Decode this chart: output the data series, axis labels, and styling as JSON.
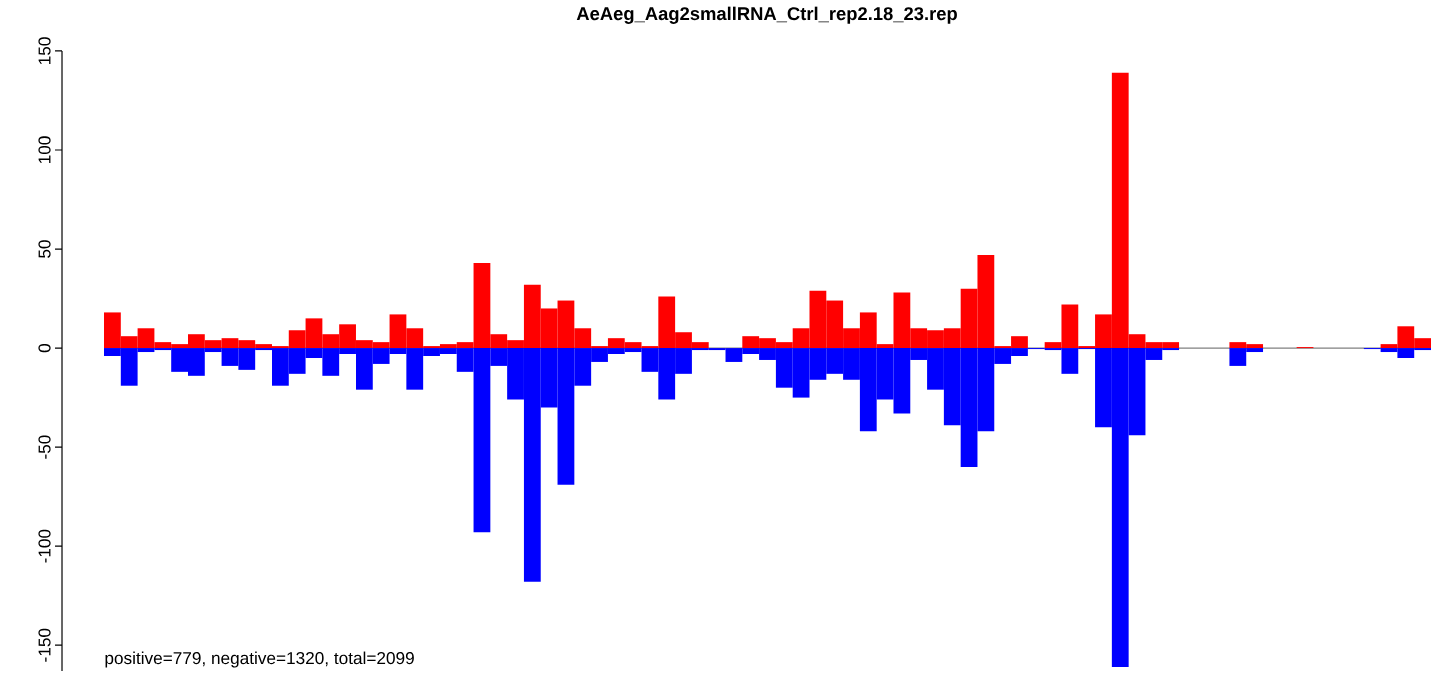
{
  "chart_data": {
    "type": "bar",
    "title": "AeAeg_Aag2smallRNA_Ctrl_rep2.18_23.rep",
    "annotations": [
      "positive=779, negative=1320, total=2099"
    ],
    "categories": [
      null,
      null,
      null,
      null,
      null,
      null,
      null,
      null,
      null,
      null,
      null,
      null,
      null,
      null,
      null,
      null,
      null,
      null,
      null,
      null,
      null,
      null,
      null,
      null,
      null,
      null,
      null,
      null,
      null,
      null,
      null,
      null,
      null,
      null,
      null,
      null,
      null,
      null,
      null,
      null,
      null,
      null,
      null,
      null,
      null,
      null,
      null,
      null,
      null,
      null,
      null,
      null,
      null,
      null,
      null,
      null,
      null,
      null,
      null,
      null,
      null,
      null,
      null,
      null,
      null,
      null,
      null,
      null,
      null,
      null,
      null,
      null,
      null,
      null,
      null,
      null,
      null,
      null,
      null
    ],
    "series": [
      {
        "color": "#ff0000",
        "values": [
          18,
          6,
          10,
          3,
          2,
          7,
          4,
          5,
          4,
          2,
          1,
          9,
          15,
          7,
          12,
          4,
          3,
          17,
          10,
          1,
          2,
          3,
          43,
          7,
          4,
          32,
          20,
          24,
          10,
          1,
          5,
          3,
          1,
          26,
          8,
          3,
          null,
          null,
          6,
          5,
          3,
          10,
          29,
          24,
          10,
          18,
          2,
          28,
          10,
          9,
          10,
          30,
          47,
          1,
          6,
          null,
          3,
          22,
          1,
          17,
          139,
          7,
          3,
          3,
          0,
          0,
          0,
          3,
          2,
          0,
          0,
          0.5,
          0,
          0,
          0,
          null,
          2,
          11,
          5
        ]
      },
      {
        "color": "#0000ff",
        "values": [
          -4,
          -19,
          -2,
          -1,
          -12,
          -14,
          -2,
          -9,
          -11,
          -1,
          -19,
          -13,
          -5,
          -14,
          -3,
          -21,
          -8,
          -3,
          -21,
          -4,
          -3,
          -12,
          -93,
          -9,
          -26,
          -118,
          -30,
          -69,
          -19,
          -7,
          -3,
          -2,
          -12,
          -26,
          -13,
          -1,
          -1,
          -7,
          -3,
          -6,
          -20,
          -25,
          -16,
          -13,
          -16,
          -42,
          -26,
          -33,
          -6,
          -21,
          -39,
          -60,
          -42,
          -8,
          -4,
          -0.5,
          -1,
          -13,
          -0.5,
          -40,
          -161,
          -44,
          -6,
          -1,
          0,
          0,
          0,
          -9,
          -2,
          0,
          0,
          0,
          0,
          0,
          0,
          -0.5,
          -2,
          -5,
          -1
        ]
      }
    ],
    "stacked": true,
    "ylim": [
      -163,
      150
    ],
    "yticks": [
      -150,
      -100,
      -50,
      0,
      50,
      100,
      150
    ],
    "ref_lines": [
      {
        "axis": "y",
        "value": 0,
        "color": "#808080"
      }
    ]
  }
}
